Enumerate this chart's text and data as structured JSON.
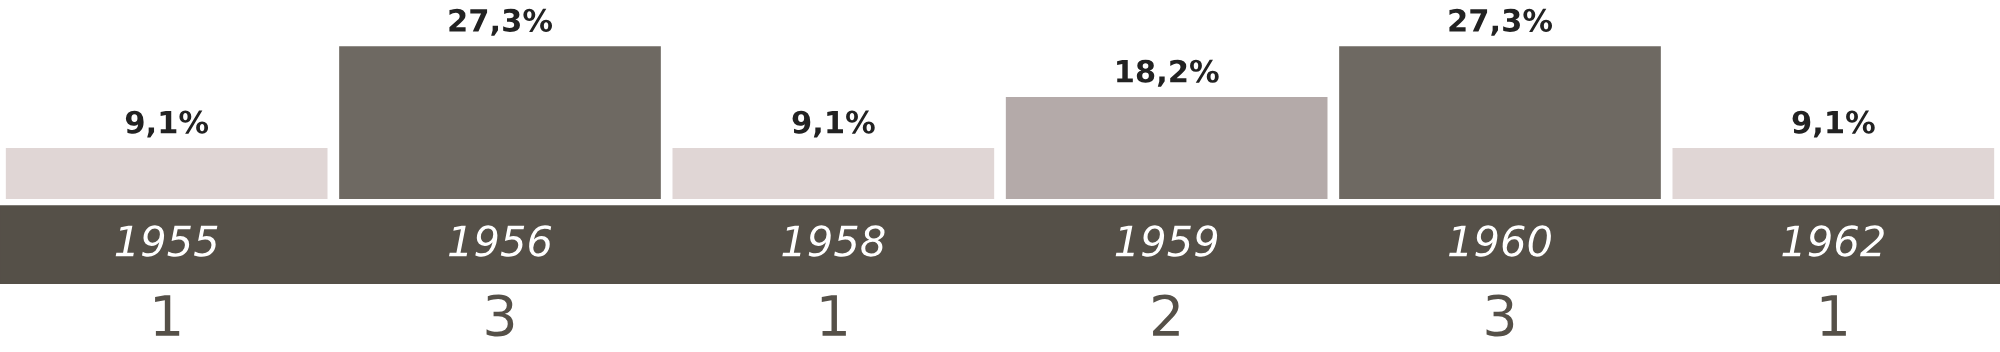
{
  "chart_data": {
    "type": "bar",
    "categories": [
      "1955",
      "1956",
      "1958",
      "1959",
      "1960",
      "1962"
    ],
    "values": [
      9.1,
      27.3,
      9.1,
      18.2,
      27.3,
      9.1
    ],
    "colors": [
      "#e0d6d5",
      "#6e6962",
      "#e0d6d5",
      "#b4aaa9",
      "#6e6962",
      "#e0d6d5"
    ],
    "value_labels": [
      "9,1%",
      "27,3%",
      "9,1%",
      "18,2%",
      "27,3%",
      "9,1%"
    ],
    "annotations": [
      "1",
      "3",
      "1",
      "2",
      "3",
      "1"
    ]
  }
}
